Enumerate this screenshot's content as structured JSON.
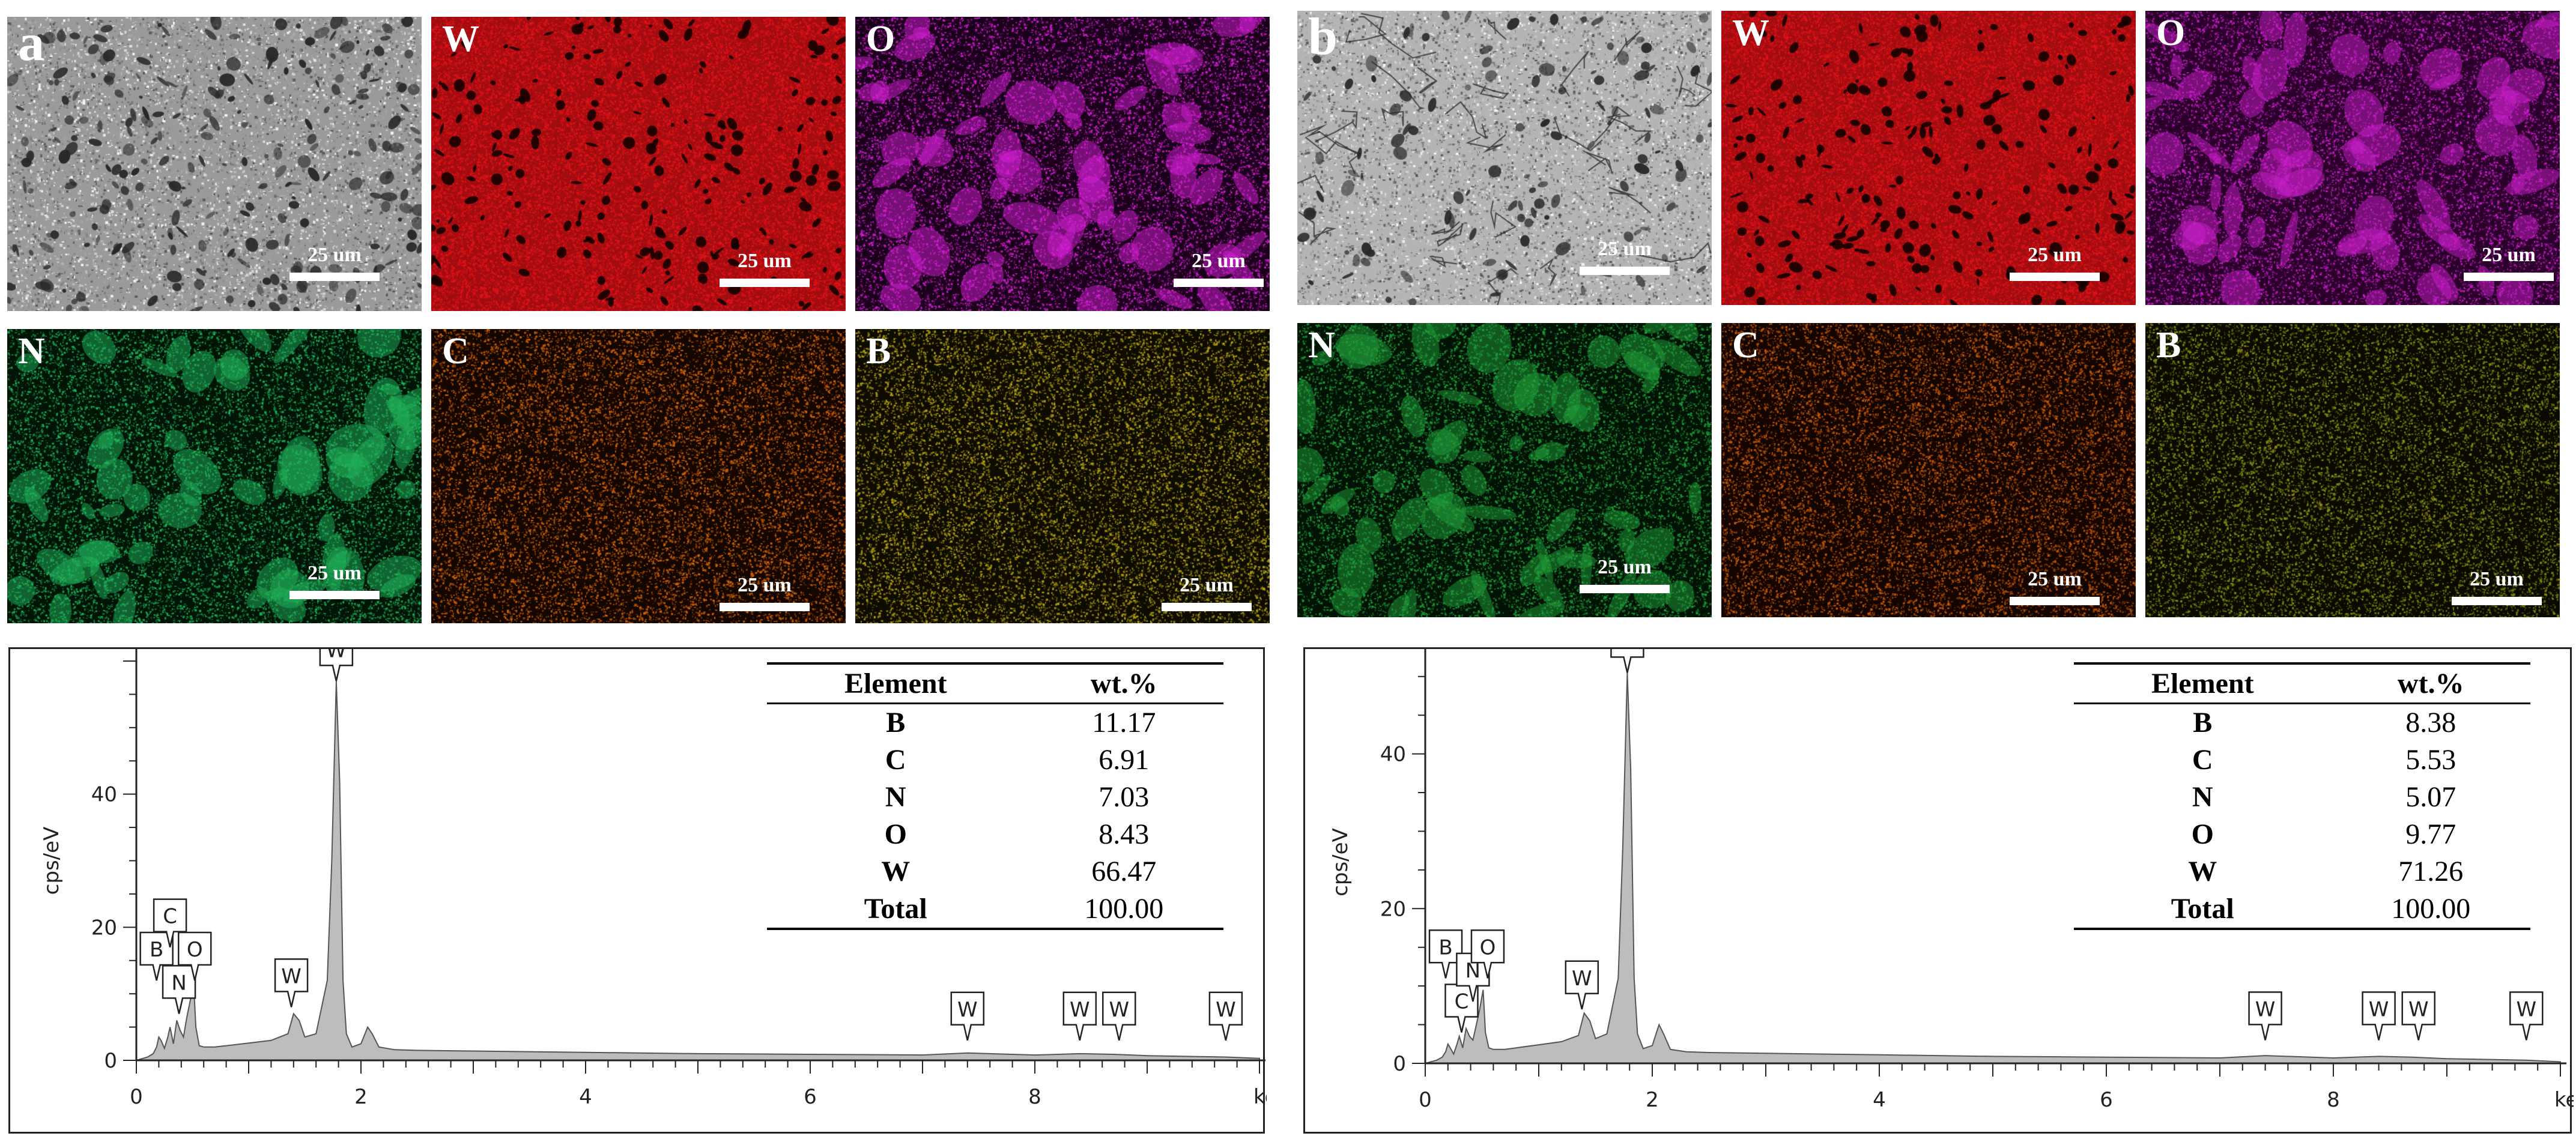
{
  "panels": [
    {
      "id": "a",
      "tiles": [
        {
          "label": "a",
          "type": "sem",
          "scale": "25 um"
        },
        {
          "label": "W",
          "type": "map",
          "color": "#e0141a",
          "base": "#a00c10",
          "scale": "25 um"
        },
        {
          "label": "O",
          "type": "map",
          "color": "#d21ed2",
          "base": "#1a001a",
          "scale": "25 um"
        },
        {
          "label": "N",
          "type": "map",
          "color": "#1fb25a",
          "base": "#011406",
          "scale": "25 um"
        },
        {
          "label": "C",
          "type": "map",
          "color": "#d2640a",
          "base": "#140600",
          "scale": "25 um"
        },
        {
          "label": "B",
          "type": "map",
          "color": "#b4a014",
          "base": "#0e0c00",
          "scale": "25 um"
        }
      ],
      "table": {
        "headers": [
          "Element",
          "wt.%"
        ],
        "rows": [
          [
            "B",
            "11.17"
          ],
          [
            "C",
            "6.91"
          ],
          [
            "N",
            "7.03"
          ],
          [
            "O",
            "8.43"
          ],
          [
            "W",
            "66.47"
          ],
          [
            "Total",
            "100.00"
          ]
        ]
      },
      "chart_data": {
        "type": "area",
        "xlabel": "keV",
        "ylabel": "cps/eV",
        "xlim": [
          0,
          10
        ],
        "ylim": [
          0,
          60
        ],
        "xticks": [
          0,
          2,
          4,
          6,
          8
        ],
        "yticks": [
          0,
          20,
          40
        ],
        "x": [
          0.0,
          0.1,
          0.15,
          0.18,
          0.2,
          0.22,
          0.25,
          0.28,
          0.3,
          0.33,
          0.36,
          0.39,
          0.42,
          0.45,
          0.48,
          0.51,
          0.53,
          0.56,
          0.6,
          0.7,
          0.8,
          1.0,
          1.2,
          1.35,
          1.4,
          1.45,
          1.5,
          1.6,
          1.7,
          1.74,
          1.78,
          1.81,
          1.84,
          1.87,
          1.92,
          2.0,
          2.06,
          2.1,
          2.16,
          2.3,
          2.5,
          3.0,
          4.0,
          5.0,
          6.0,
          7.0,
          7.4,
          8.0,
          8.4,
          8.7,
          9.0,
          9.7,
          10.0
        ],
        "y": [
          0,
          0.5,
          1.0,
          2.0,
          3.5,
          3.0,
          1.8,
          3.5,
          5.0,
          2.5,
          6.0,
          4.5,
          3.5,
          6.5,
          9.0,
          11.5,
          5.0,
          2.2,
          2.0,
          2.0,
          2.2,
          2.6,
          3.0,
          4.0,
          7.0,
          6.0,
          3.5,
          4.0,
          12.0,
          30.0,
          57.0,
          42.0,
          12.0,
          4.0,
          2.0,
          2.5,
          5.0,
          4.0,
          2.0,
          1.6,
          1.5,
          1.4,
          1.2,
          1.0,
          0.9,
          0.8,
          1.1,
          0.8,
          1.0,
          0.9,
          0.7,
          0.5,
          0.3
        ],
        "annotations": [
          {
            "text": "B",
            "x": 0.18,
            "y": 12
          },
          {
            "text": "C",
            "x": 0.3,
            "y": 17
          },
          {
            "text": "N",
            "x": 0.38,
            "y": 7
          },
          {
            "text": "O",
            "x": 0.52,
            "y": 12
          },
          {
            "text": "W",
            "x": 1.38,
            "y": 8
          },
          {
            "text": "W",
            "x": 1.78,
            "y": 57
          },
          {
            "text": "W",
            "x": 7.4,
            "y": 3
          },
          {
            "text": "W",
            "x": 8.4,
            "y": 3
          },
          {
            "text": "W",
            "x": 8.75,
            "y": 3
          },
          {
            "text": "W",
            "x": 9.7,
            "y": 3
          }
        ]
      }
    },
    {
      "id": "b",
      "tiles": [
        {
          "label": "b",
          "type": "sem2",
          "scale": "25 um"
        },
        {
          "label": "W",
          "type": "map",
          "color": "#e0141a",
          "base": "#a00c10",
          "scale": "25 um"
        },
        {
          "label": "O",
          "type": "map",
          "color": "#c81ec8",
          "base": "#2a002a",
          "scale": "25 um"
        },
        {
          "label": "N",
          "type": "map",
          "color": "#1f9e3a",
          "base": "#021204",
          "scale": "25 um"
        },
        {
          "label": "C",
          "type": "map",
          "color": "#c85a0a",
          "base": "#140500",
          "scale": "25 um"
        },
        {
          "label": "B",
          "type": "map",
          "color": "#8c8c14",
          "base": "#0a0a00",
          "scale": "25 um"
        }
      ],
      "table": {
        "headers": [
          "Element",
          "wt.%"
        ],
        "rows": [
          [
            "B",
            "8.38"
          ],
          [
            "C",
            "5.53"
          ],
          [
            "N",
            "5.07"
          ],
          [
            "O",
            "9.77"
          ],
          [
            "W",
            "71.26"
          ],
          [
            "Total",
            "100.00"
          ]
        ]
      },
      "chart_data": {
        "type": "area",
        "xlabel": "keV",
        "ylabel": "cps/eV",
        "xlim": [
          0,
          10
        ],
        "ylim": [
          0,
          52
        ],
        "xticks": [
          0,
          2,
          4,
          6,
          8
        ],
        "yticks": [
          0,
          20,
          40
        ],
        "x": [
          0.0,
          0.1,
          0.15,
          0.18,
          0.2,
          0.22,
          0.25,
          0.28,
          0.3,
          0.33,
          0.36,
          0.39,
          0.42,
          0.45,
          0.48,
          0.51,
          0.53,
          0.56,
          0.6,
          0.7,
          0.8,
          1.0,
          1.2,
          1.35,
          1.4,
          1.45,
          1.5,
          1.6,
          1.7,
          1.74,
          1.78,
          1.81,
          1.84,
          1.87,
          1.92,
          2.0,
          2.06,
          2.1,
          2.16,
          2.3,
          2.5,
          3.0,
          4.0,
          5.0,
          6.0,
          7.0,
          7.4,
          8.0,
          8.4,
          8.7,
          9.0,
          9.7,
          10.0
        ],
        "y": [
          0,
          0.4,
          0.8,
          1.5,
          2.5,
          2.0,
          1.2,
          2.5,
          3.5,
          2.0,
          4.5,
          3.5,
          3.0,
          5.0,
          7.0,
          9.5,
          4.0,
          2.0,
          1.8,
          1.8,
          2.0,
          2.4,
          2.8,
          3.6,
          6.5,
          5.5,
          3.2,
          3.8,
          11.0,
          28.0,
          50.5,
          38.0,
          11.0,
          3.8,
          1.9,
          2.3,
          5.0,
          3.8,
          1.8,
          1.5,
          1.4,
          1.3,
          1.1,
          0.9,
          0.8,
          0.7,
          1.0,
          0.7,
          0.9,
          0.8,
          0.6,
          0.4,
          0.2
        ],
        "annotations": [
          {
            "text": "B",
            "x": 0.18,
            "y": 11
          },
          {
            "text": "C",
            "x": 0.32,
            "y": 4
          },
          {
            "text": "N",
            "x": 0.42,
            "y": 8
          },
          {
            "text": "O",
            "x": 0.55,
            "y": 11
          },
          {
            "text": "W",
            "x": 1.38,
            "y": 7
          },
          {
            "text": "W",
            "x": 1.78,
            "y": 50.5
          },
          {
            "text": "W",
            "x": 7.4,
            "y": 3
          },
          {
            "text": "W",
            "x": 8.4,
            "y": 3
          },
          {
            "text": "W",
            "x": 8.75,
            "y": 3
          },
          {
            "text": "W",
            "x": 9.7,
            "y": 3
          }
        ]
      }
    }
  ]
}
